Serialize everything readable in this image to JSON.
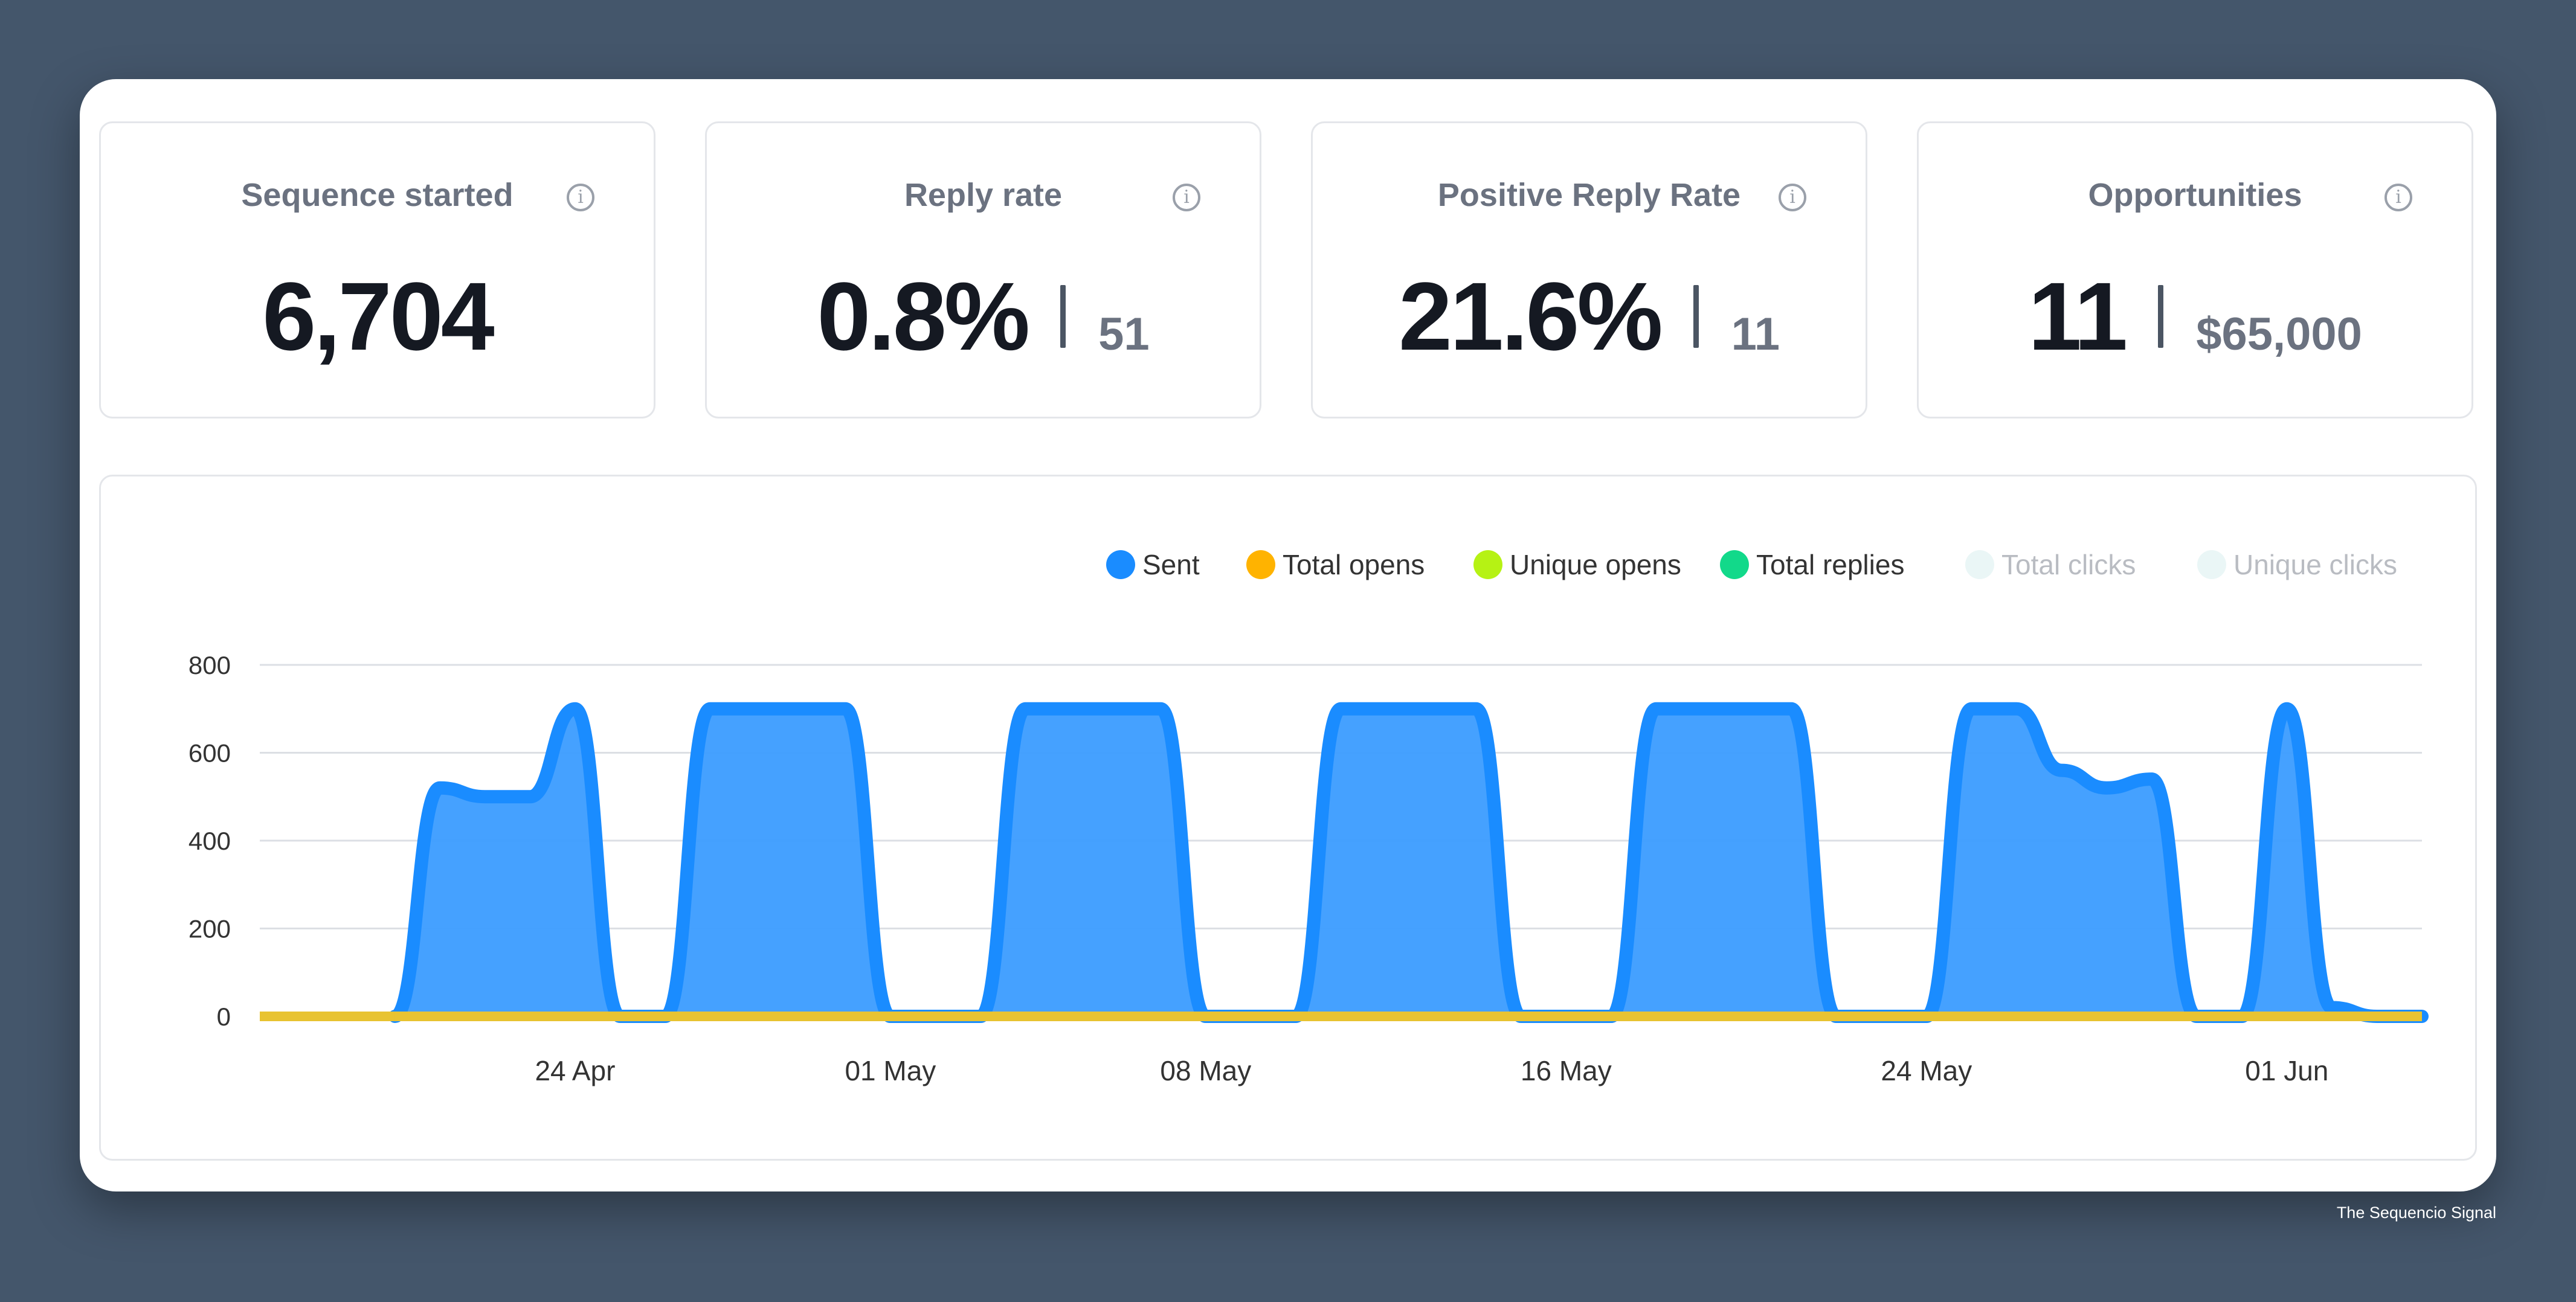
{
  "cards": [
    {
      "title": "Sequence started",
      "value": "6,704",
      "secondary": ""
    },
    {
      "title": "Reply rate",
      "value": "0.8%",
      "secondary": "51"
    },
    {
      "title": "Positive Reply Rate",
      "value": "21.6%",
      "secondary": "11"
    },
    {
      "title": "Opportunities",
      "value": "11",
      "secondary": "$65,000"
    }
  ],
  "info_icon": "info-icon",
  "watermark": "The Sequencio Signal",
  "chart_data": {
    "type": "area",
    "series": [
      {
        "name": "Sent",
        "color": "#1a8cff",
        "enabled": true,
        "points": [
          [
            "2023-04-20",
            0
          ],
          [
            "2023-04-21",
            520
          ],
          [
            "2023-04-22",
            500
          ],
          [
            "2023-04-23",
            500
          ],
          [
            "2023-04-24",
            700
          ],
          [
            "2023-04-25",
            0
          ],
          [
            "2023-04-26",
            0
          ],
          [
            "2023-04-27",
            700
          ],
          [
            "2023-04-28",
            700
          ],
          [
            "2023-04-29",
            700
          ],
          [
            "2023-04-30",
            700
          ],
          [
            "2023-05-01",
            0
          ],
          [
            "2023-05-02",
            0
          ],
          [
            "2023-05-03",
            0
          ],
          [
            "2023-05-04",
            700
          ],
          [
            "2023-05-05",
            700
          ],
          [
            "2023-05-06",
            700
          ],
          [
            "2023-05-07",
            700
          ],
          [
            "2023-05-08",
            0
          ],
          [
            "2023-05-09",
            0
          ],
          [
            "2023-05-10",
            0
          ],
          [
            "2023-05-11",
            700
          ],
          [
            "2023-05-12",
            700
          ],
          [
            "2023-05-13",
            700
          ],
          [
            "2023-05-14",
            700
          ],
          [
            "2023-05-15",
            0
          ],
          [
            "2023-05-16",
            0
          ],
          [
            "2023-05-17",
            0
          ],
          [
            "2023-05-18",
            700
          ],
          [
            "2023-05-19",
            700
          ],
          [
            "2023-05-20",
            700
          ],
          [
            "2023-05-21",
            700
          ],
          [
            "2023-05-22",
            0
          ],
          [
            "2023-05-23",
            0
          ],
          [
            "2023-05-24",
            0
          ],
          [
            "2023-05-25",
            700
          ],
          [
            "2023-05-26",
            700
          ],
          [
            "2023-05-27",
            560
          ],
          [
            "2023-05-28",
            520
          ],
          [
            "2023-05-29",
            540
          ],
          [
            "2023-05-30",
            0
          ],
          [
            "2023-05-31",
            0
          ],
          [
            "2023-06-01",
            700
          ],
          [
            "2023-06-02",
            20
          ],
          [
            "2023-06-03",
            0
          ],
          [
            "2023-06-04",
            0
          ]
        ]
      },
      {
        "name": "Total opens",
        "color": "#ffb300",
        "enabled": true,
        "constant": 0
      },
      {
        "name": "Unique opens",
        "color": "#b6f214",
        "enabled": true,
        "constant": 0
      },
      {
        "name": "Total replies",
        "color": "#12d98a",
        "enabled": true,
        "constant": 0
      },
      {
        "name": "Total clicks",
        "color": "#eaf6f6",
        "enabled": false,
        "constant": 0
      },
      {
        "name": "Unique clicks",
        "color": "#eaf6f6",
        "enabled": false,
        "constant": 0
      }
    ],
    "xlim": [
      "2023-04-17",
      "2023-06-04"
    ],
    "ylim": [
      0,
      800
    ],
    "yticks": [
      0,
      200,
      400,
      600,
      800
    ],
    "xticks": [
      {
        "label": "24 Apr",
        "date": "2023-04-24"
      },
      {
        "label": "01 May",
        "date": "2023-05-01"
      },
      {
        "label": "08 May",
        "date": "2023-05-08"
      },
      {
        "label": "16 May",
        "date": "2023-05-16"
      },
      {
        "label": "24 May",
        "date": "2023-05-24"
      },
      {
        "label": "01 Jun",
        "date": "2023-06-01"
      }
    ],
    "grid": true,
    "legend": "top-right"
  }
}
